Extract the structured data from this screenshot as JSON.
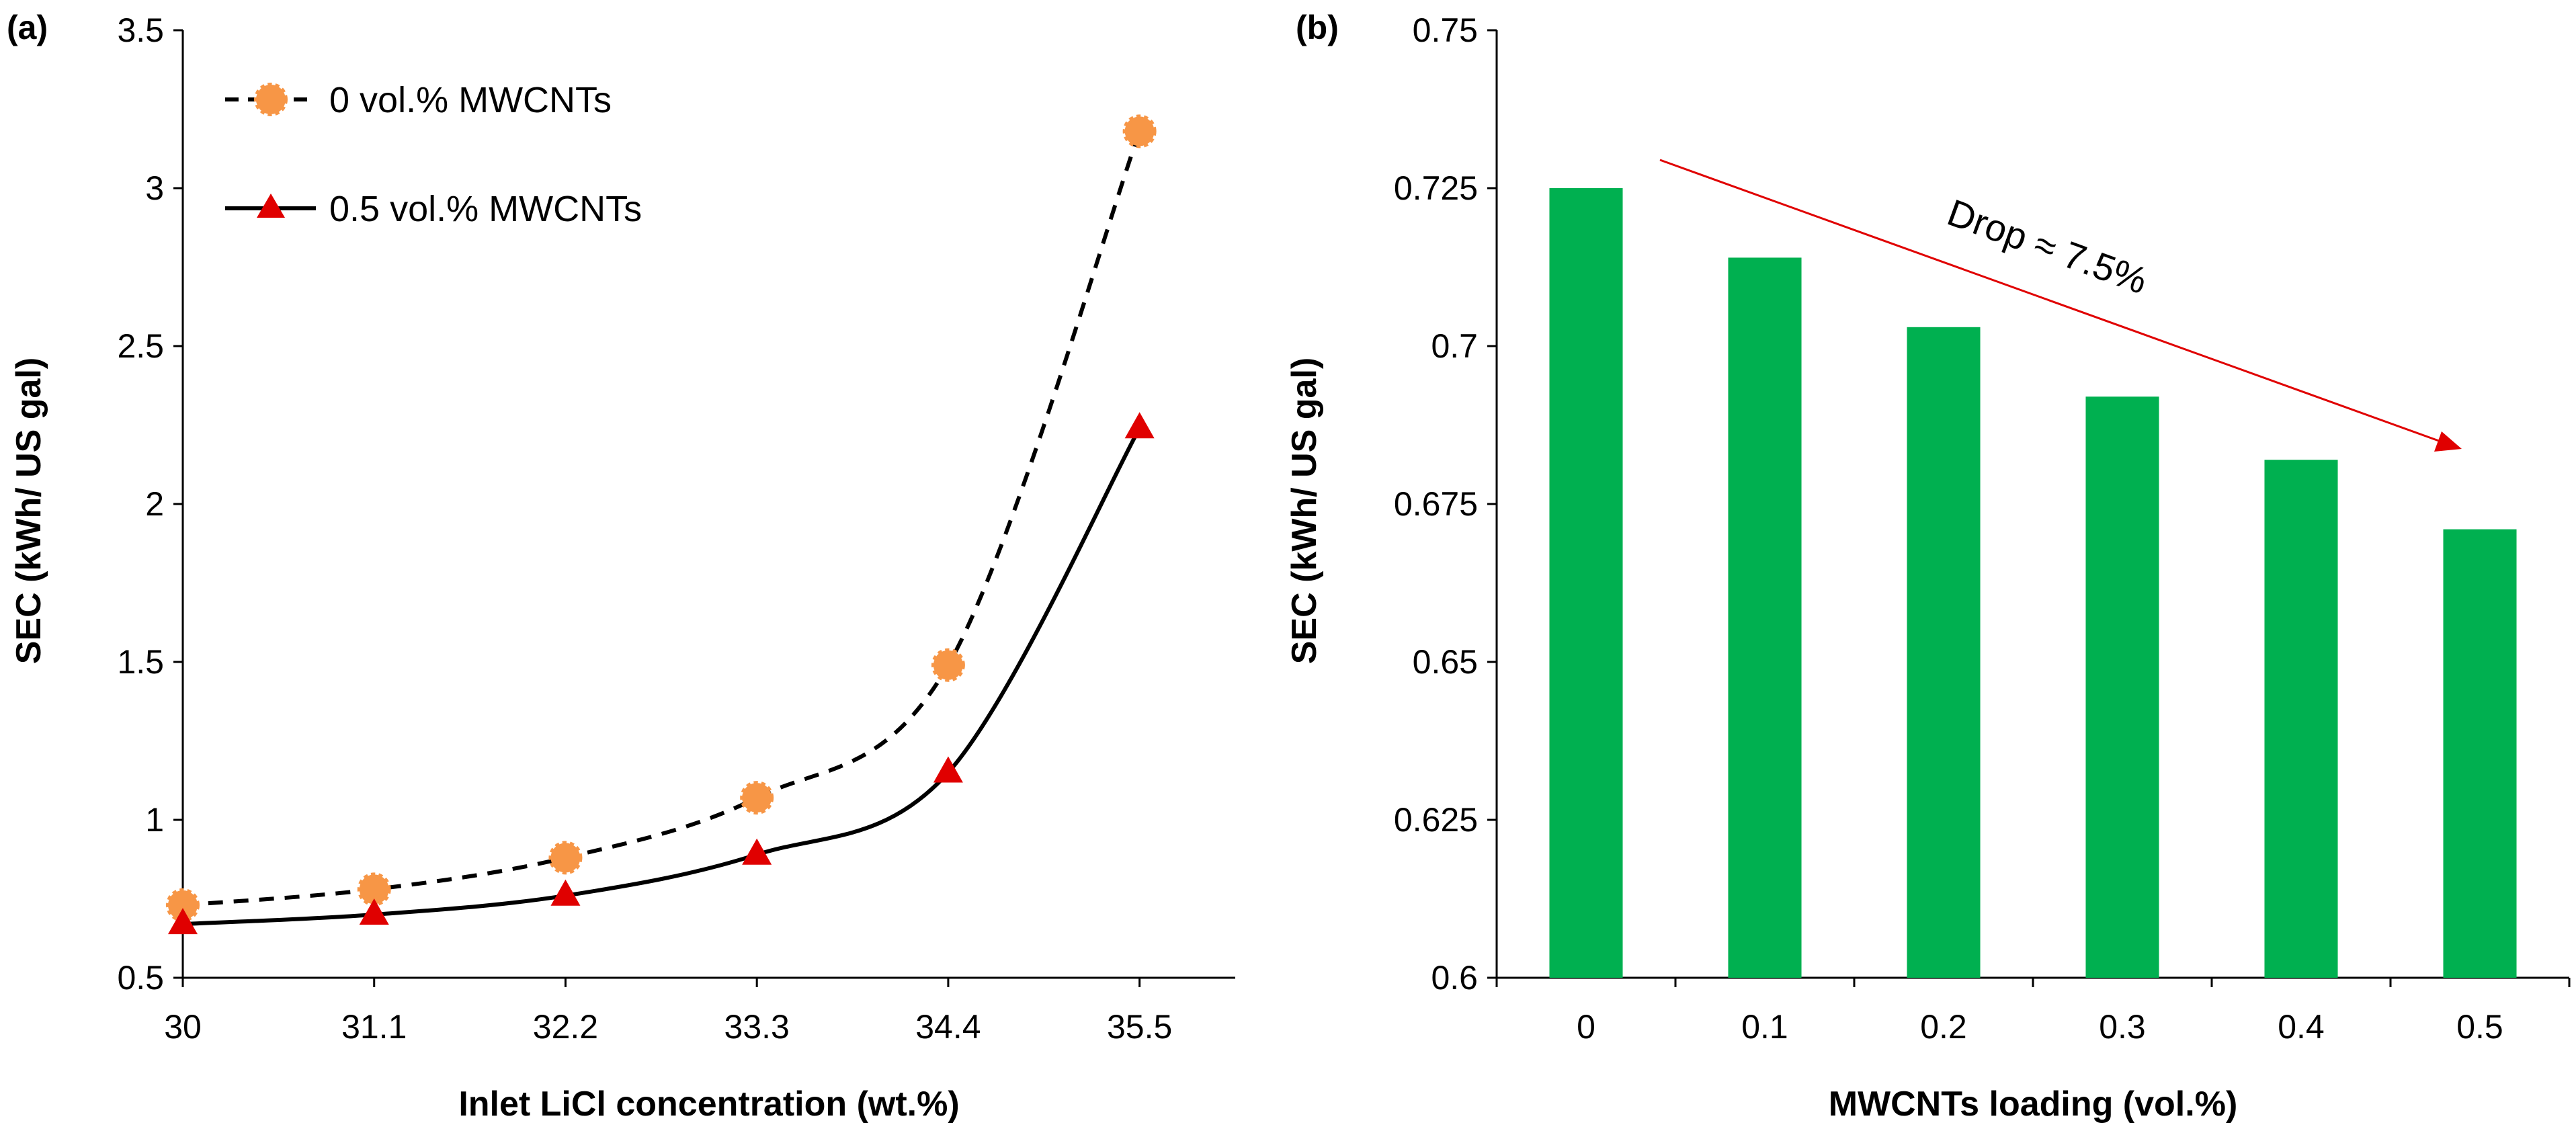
{
  "colors": {
    "orange": "#F79646",
    "red": "#E00000",
    "green": "#00B050",
    "arrow": "#E00000",
    "axis": "#000000"
  },
  "chart_data": [
    {
      "panel_label": "(a)",
      "type": "line",
      "title": "",
      "xlabel": "Inlet LiCl concentration (wt.%)",
      "ylabel": "SEC (kWh/ US gal)",
      "xlim": [
        30,
        36.05
      ],
      "ylim": [
        0.5,
        3.5
      ],
      "x_ticks": [
        "30",
        "31.1",
        "32.2",
        "33.3",
        "34.4",
        "35.5"
      ],
      "x_tick_values": [
        30,
        31.1,
        32.2,
        33.3,
        34.4,
        35.5
      ],
      "y_ticks": [
        "0.5",
        "1",
        "1.5",
        "2",
        "2.5",
        "3",
        "3.5"
      ],
      "y_tick_values": [
        0.5,
        1,
        1.5,
        2,
        2.5,
        3,
        3.5
      ],
      "legend_position": "top-left",
      "series": [
        {
          "name": "0 vol.% MWCNTs",
          "style": "dashed",
          "marker": "circle",
          "color": "#F79646",
          "x": [
            30,
            31.1,
            32.2,
            33.3,
            34.4,
            35.5
          ],
          "y": [
            0.73,
            0.78,
            0.88,
            1.07,
            1.49,
            3.18
          ]
        },
        {
          "name": "0.5 vol.% MWCNTs",
          "style": "solid",
          "marker": "triangle",
          "color": "#E00000",
          "x": [
            30,
            31.1,
            32.2,
            33.3,
            34.4,
            35.5
          ],
          "y": [
            0.67,
            0.7,
            0.76,
            0.89,
            1.15,
            2.24
          ]
        }
      ]
    },
    {
      "panel_label": "(b)",
      "type": "bar",
      "title": "",
      "xlabel": "MWCNTs loading (vol.%)",
      "ylabel": "SEC (kWh/ US gal)",
      "categories": [
        "0",
        "0.1",
        "0.2",
        "0.3",
        "0.4",
        "0.5"
      ],
      "values": [
        0.725,
        0.714,
        0.703,
        0.692,
        0.682,
        0.671
      ],
      "ylim": [
        0.6,
        0.75
      ],
      "y_ticks": [
        "0.6",
        "0.625",
        "0.65",
        "0.675",
        "0.7",
        "0.725",
        "0.75"
      ],
      "y_tick_values": [
        0.6,
        0.625,
        0.65,
        0.675,
        0.7,
        0.725,
        0.75
      ],
      "bar_color": "#00B050",
      "annotation": "Drop ≈ 7.5%"
    }
  ]
}
